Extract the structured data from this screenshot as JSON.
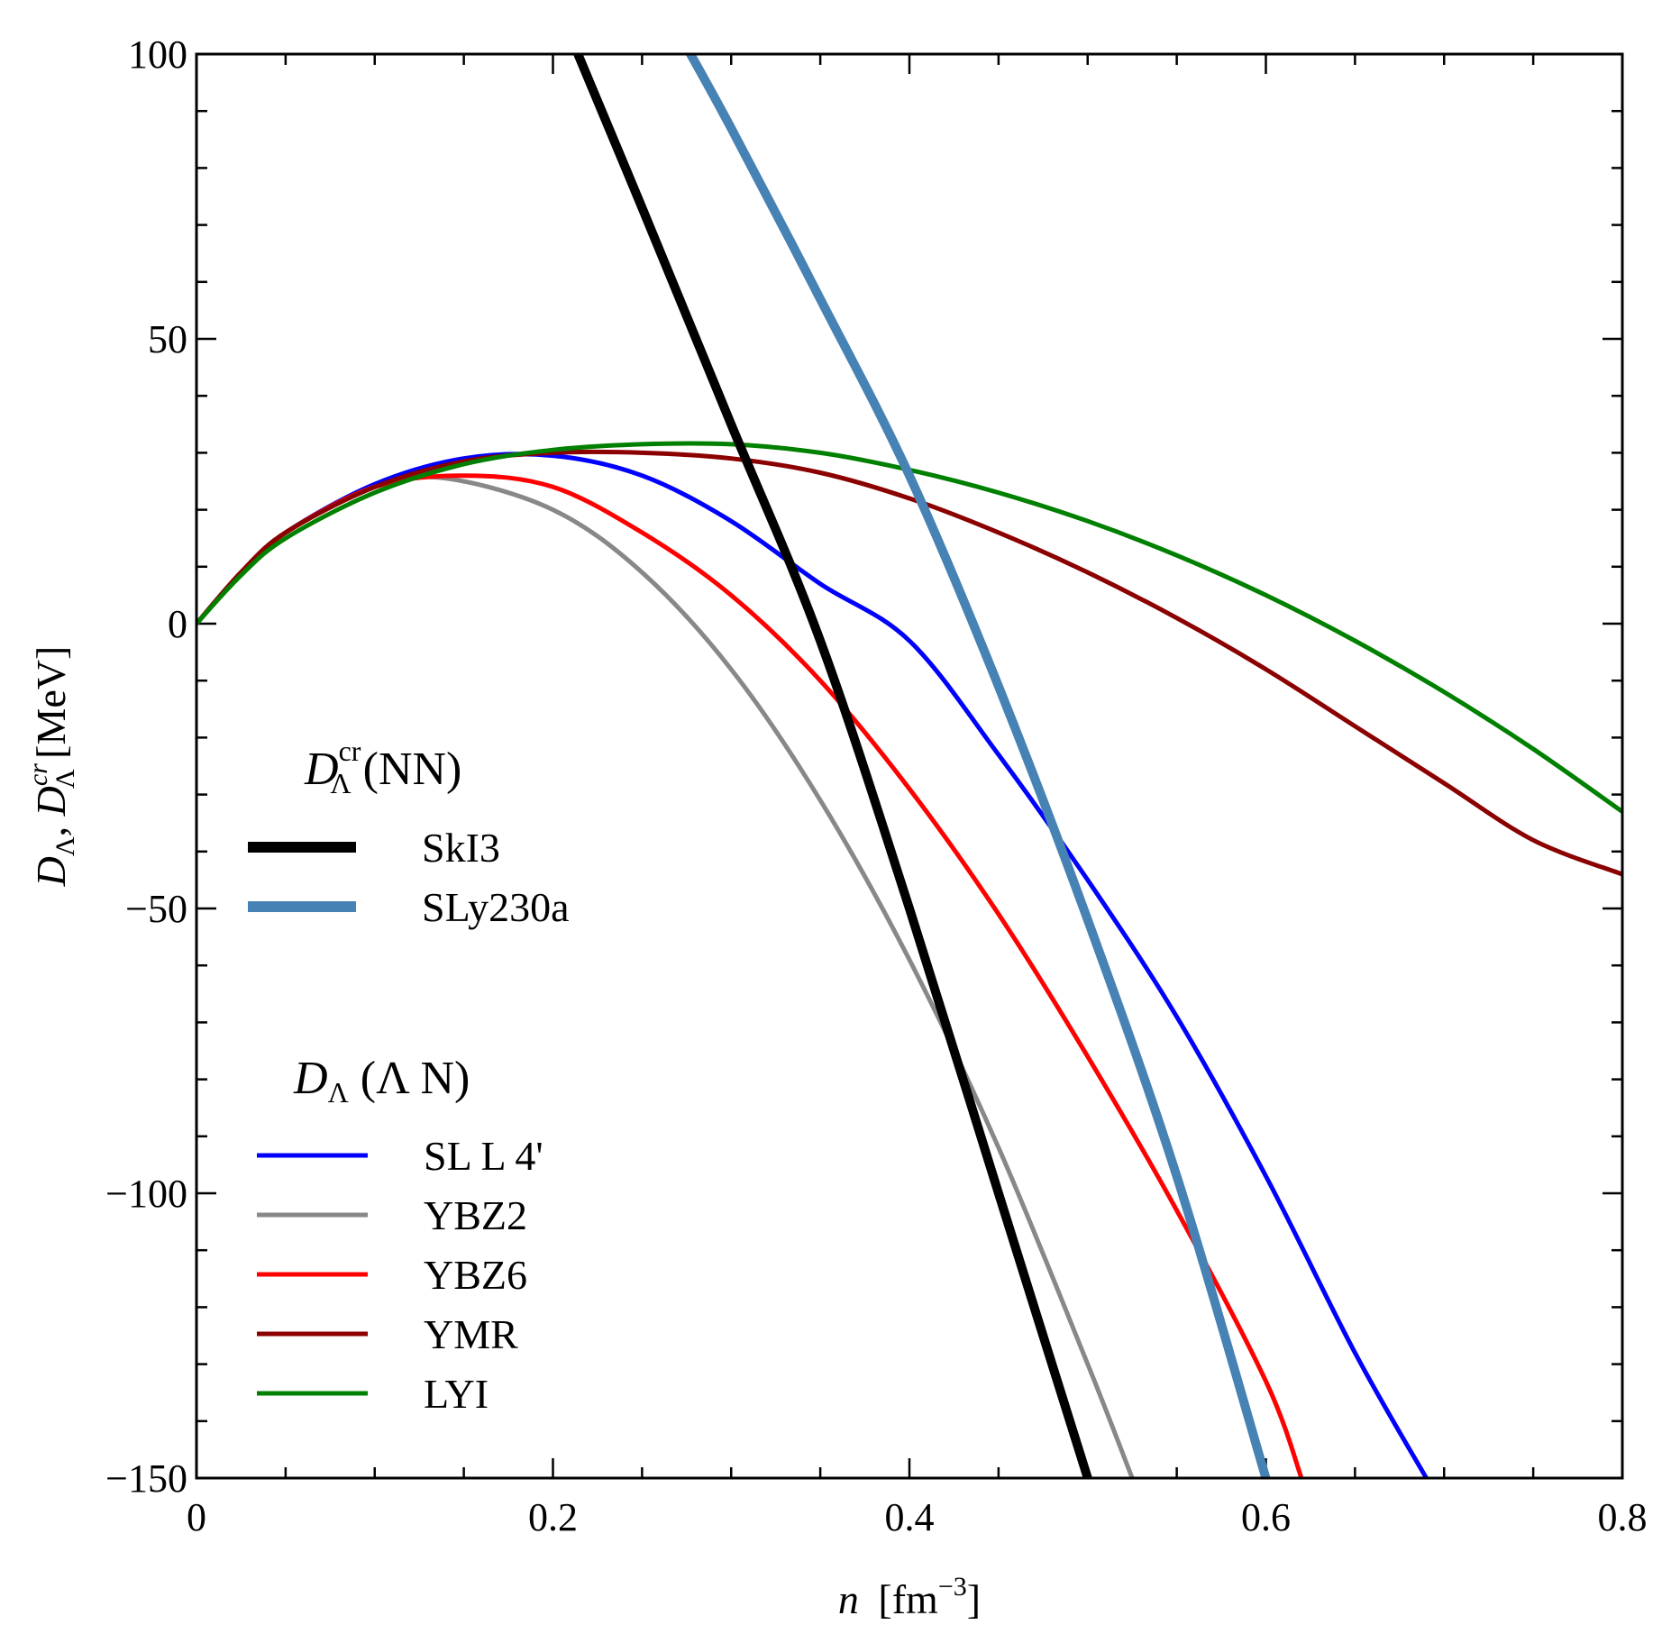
{
  "chart_data": {
    "type": "line",
    "xlabel": {
      "var": "n",
      "unit": "[fm",
      "sup": "−3",
      "close": "]"
    },
    "ylabel": {
      "a": "D",
      "a_sub": "Λ",
      "sep": ", ",
      "b": "D",
      "b_sub": "Λ",
      "b_sup": "cr",
      "unit": " [MeV]"
    },
    "xlim": [
      0,
      0.8
    ],
    "ylim": [
      -150,
      100
    ],
    "x_major_ticks": [
      0,
      0.2,
      0.4,
      0.6,
      0.8
    ],
    "x_tick_labels": [
      "0",
      "0.2",
      "0.4",
      "0.6",
      "0.8"
    ],
    "x_minor_step": 0.05,
    "y_major_ticks": [
      100,
      50,
      0,
      -50,
      -100,
      -150
    ],
    "y_tick_labels": [
      "100",
      "50",
      "0",
      "−50",
      "−100",
      "−150"
    ],
    "y_minor_step": 10,
    "legend_groups": [
      {
        "title": {
          "main": "D",
          "sub": "Λ",
          "sup": "cr",
          "rest": " (NN)"
        },
        "entries": [
          "SkI3",
          "SLy230a"
        ]
      },
      {
        "title": {
          "main": "D",
          "sub": "Λ",
          "sup": "",
          "rest": " (Λ N)"
        },
        "entries": [
          "SL L 4'",
          "YBZ2",
          "YBZ6",
          "YMR",
          "LYI"
        ]
      }
    ],
    "series": [
      {
        "name": "SkI3",
        "group": "NN",
        "color": "#000000",
        "width": "thick",
        "x": [
          0.21,
          0.25,
          0.3,
          0.35,
          0.4,
          0.45,
          0.5
        ],
        "y": [
          103,
          73,
          35,
          -3,
          -50,
          -100,
          -150
        ]
      },
      {
        "name": "SLy230a",
        "group": "NN",
        "color": "#4682b4",
        "width": "thick",
        "x": [
          0.27,
          0.3,
          0.35,
          0.4,
          0.45,
          0.5,
          0.55,
          0.6
        ],
        "y": [
          104,
          87,
          57,
          26,
          -11,
          -52,
          -97,
          -150
        ]
      },
      {
        "name": "SL L 4'",
        "group": "LN",
        "color": "#0000ff",
        "width": "normal",
        "x": [
          0,
          0.025,
          0.05,
          0.1,
          0.15,
          0.2,
          0.25,
          0.3,
          0.35,
          0.4,
          0.45,
          0.5,
          0.55,
          0.6,
          0.65,
          0.69
        ],
        "y": [
          0,
          9,
          16,
          24.5,
          29,
          29.5,
          26,
          18,
          7,
          -3,
          -23,
          -45,
          -69,
          -97,
          -128,
          -150
        ]
      },
      {
        "name": "YBZ2",
        "group": "LN",
        "color": "#888888",
        "width": "normal",
        "x": [
          0,
          0.025,
          0.05,
          0.1,
          0.14,
          0.2,
          0.25,
          0.3,
          0.35,
          0.4,
          0.45,
          0.5,
          0.525
        ],
        "y": [
          0,
          9,
          16,
          24,
          25.5,
          20,
          9,
          -8,
          -31,
          -59,
          -92,
          -130,
          -150
        ]
      },
      {
        "name": "YBZ6",
        "group": "LN",
        "color": "#ff0000",
        "width": "normal",
        "x": [
          0,
          0.025,
          0.05,
          0.1,
          0.15,
          0.2,
          0.25,
          0.3,
          0.35,
          0.4,
          0.45,
          0.5,
          0.55,
          0.6,
          0.62
        ],
        "y": [
          0,
          9,
          16,
          24,
          26,
          24,
          16,
          5,
          -10,
          -29,
          -51,
          -76,
          -103,
          -133,
          -150
        ]
      },
      {
        "name": "YMR",
        "group": "LN",
        "color": "#8b0000",
        "width": "normal",
        "x": [
          0,
          0.025,
          0.05,
          0.1,
          0.15,
          0.2,
          0.25,
          0.3,
          0.35,
          0.4,
          0.45,
          0.5,
          0.55,
          0.6,
          0.65,
          0.7,
          0.75,
          0.8
        ],
        "y": [
          0,
          9,
          16,
          24,
          28.5,
          30,
          30,
          29,
          26.5,
          22,
          16,
          9,
          1,
          -8,
          -18,
          -28,
          -38,
          -44
        ]
      },
      {
        "name": "LYI",
        "group": "LN",
        "color": "#008000",
        "width": "normal",
        "x": [
          0,
          0.025,
          0.05,
          0.1,
          0.15,
          0.2,
          0.25,
          0.3,
          0.35,
          0.4,
          0.45,
          0.5,
          0.55,
          0.6,
          0.65,
          0.7,
          0.75,
          0.8
        ],
        "y": [
          0,
          8.5,
          15,
          23,
          28,
          30.5,
          31.5,
          31.5,
          30,
          27,
          23,
          18,
          12,
          5,
          -3,
          -12,
          -22,
          -33
        ]
      }
    ]
  }
}
